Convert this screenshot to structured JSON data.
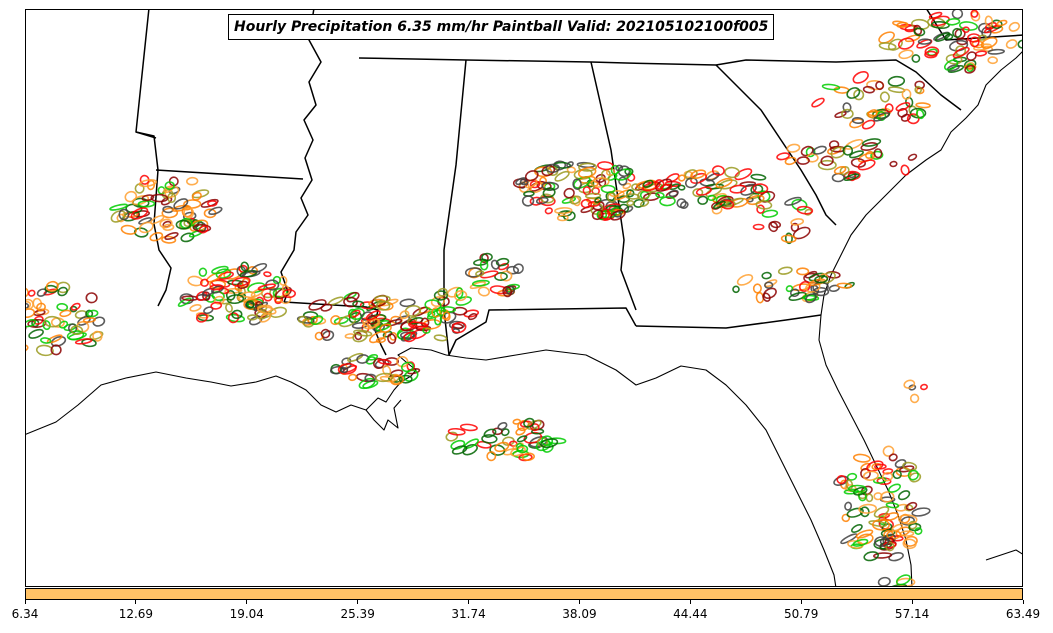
{
  "title": "Hourly Precipitation 6.35 mm/hr Paintball Valid: 202105102100f005",
  "colorbar": {
    "color": "#ffc266",
    "ticks": [
      "6.34",
      "12.69",
      "19.04",
      "25.39",
      "31.74",
      "38.09",
      "44.44",
      "50.79",
      "57.14",
      "63.49"
    ]
  },
  "palette": {
    "orange": "#ff8000",
    "light_orange": "#ffa030",
    "red": "#ff0000",
    "dark_red": "#8b0000",
    "green": "#00cc00",
    "dark_green": "#006400",
    "olive": "#9a9a20",
    "gray": "#404040"
  }
}
